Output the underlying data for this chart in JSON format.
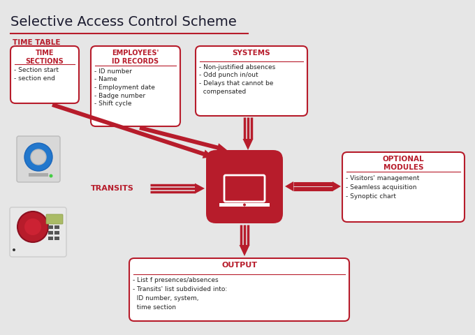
{
  "title": "Selective Access Control Scheme",
  "bg_color": "#e6e6e6",
  "red_color": "#b71c2b",
  "dark_red": "#8b1020",
  "title_color": "#1a1a2e",
  "text_color": "#222222",
  "timetable_label": "TIME TABLE",
  "time_sections_title": "TIME\nSECTIONS",
  "time_sections_items": [
    "- Section start",
    "- section end"
  ],
  "employees_title": "EMPLOYEES'\nID RECORDS",
  "employees_items": [
    "- ID number",
    "- Name",
    "- Employment date",
    "- Badge number",
    "- Shift cycle"
  ],
  "systems_title": "SYSTEMS",
  "systems_items": [
    "- Non-justified absences",
    "- Odd punch in/out",
    "- Delays that cannot be",
    "  compensated"
  ],
  "transits_label": "TRANSITS",
  "optional_title": "OPTIONAL\nMODULES",
  "optional_items": [
    "- Visitors' management",
    "- Seamless acquisition",
    "- Synoptic chart"
  ],
  "output_title": "OUTPUT",
  "output_items": [
    "- List f presences/absences",
    "- Transits' list subdivided into:",
    "  ID number, system,",
    "  time section"
  ]
}
